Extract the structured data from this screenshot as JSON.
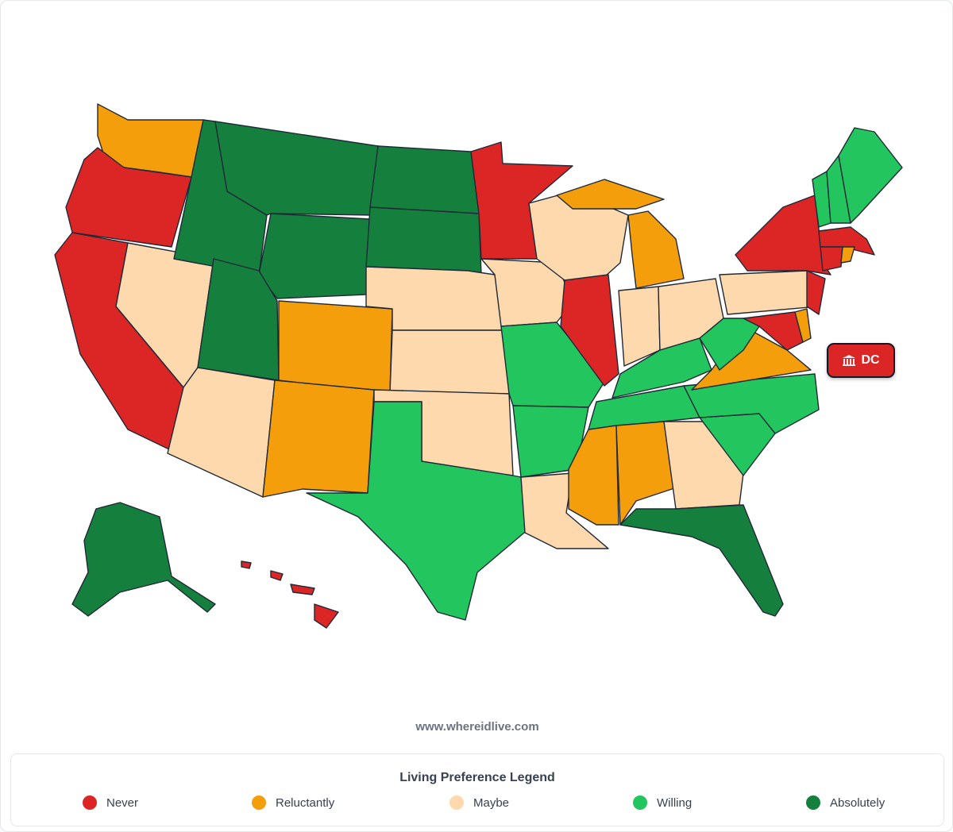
{
  "badge": {
    "label": "DC",
    "color": "#dc2626"
  },
  "footer": {
    "url": "www.whereidlive.com"
  },
  "legend": {
    "title": "Living Preference Legend",
    "items": [
      {
        "label": "Never",
        "color": "#dc2626"
      },
      {
        "label": "Reluctantly",
        "color": "#f59e0b"
      },
      {
        "label": "Maybe",
        "color": "#fdd9ad"
      },
      {
        "label": "Willing",
        "color": "#22c55e"
      },
      {
        "label": "Absolutely",
        "color": "#15803d"
      }
    ]
  }
}
